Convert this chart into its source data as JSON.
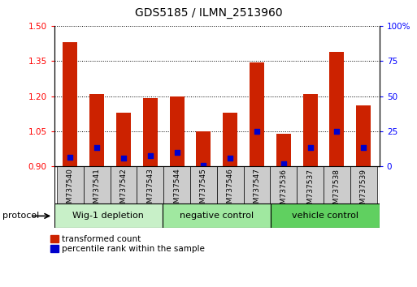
{
  "title": "GDS5185 / ILMN_2513960",
  "samples": [
    "GSM737540",
    "GSM737541",
    "GSM737542",
    "GSM737543",
    "GSM737544",
    "GSM737545",
    "GSM737546",
    "GSM737547",
    "GSM737536",
    "GSM737537",
    "GSM737538",
    "GSM737539"
  ],
  "red_values": [
    1.43,
    1.21,
    1.13,
    1.19,
    1.2,
    1.05,
    1.13,
    1.345,
    1.04,
    1.21,
    1.39,
    1.16
  ],
  "blue_values": [
    0.94,
    0.98,
    0.935,
    0.945,
    0.96,
    0.905,
    0.935,
    1.05,
    0.91,
    0.98,
    1.05,
    0.98
  ],
  "ylim_left": [
    0.9,
    1.5
  ],
  "ylim_right": [
    0,
    100
  ],
  "yticks_left": [
    0.9,
    1.05,
    1.2,
    1.35,
    1.5
  ],
  "yticks_right": [
    0,
    25,
    50,
    75,
    100
  ],
  "bar_bottom": 0.9,
  "bar_width": 0.55,
  "blue_dot_size": 22,
  "red_color": "#cc2200",
  "blue_color": "#0000cc",
  "group_data": [
    {
      "label": "Wig-1 depletion",
      "start": 0,
      "end": 4,
      "color": "#c8f0c8"
    },
    {
      "label": "negative control",
      "start": 4,
      "end": 8,
      "color": "#a0e8a0"
    },
    {
      "label": "vehicle control",
      "start": 8,
      "end": 12,
      "color": "#60d060"
    }
  ],
  "legend_red": "transformed count",
  "legend_blue": "percentile rank within the sample",
  "protocol_label": "protocol"
}
